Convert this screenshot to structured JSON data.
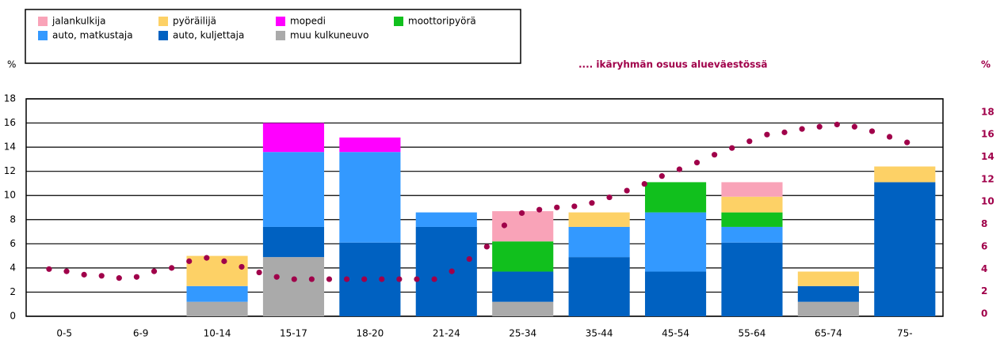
{
  "chart_data": {
    "type": "bar",
    "stacked": true,
    "categories": [
      "0-5",
      "6-9",
      "10-14",
      "15-17",
      "18-20",
      "21-24",
      "25-34",
      "35-44",
      "45-54",
      "55-64",
      "65-74",
      "75-"
    ],
    "ylabel": "%",
    "y2label": "%",
    "ylim": [
      0,
      18
    ],
    "yticks": [
      0,
      2,
      4,
      6,
      8,
      10,
      12,
      14,
      16,
      18
    ],
    "y2lim": [
      0,
      19.4
    ],
    "y2ticks": [
      0,
      2,
      4,
      6,
      8,
      10,
      12,
      14,
      16,
      18
    ],
    "grid": true,
    "series": [
      {
        "name": "jalankulkija",
        "color": "#f9a3b8",
        "values": [
          0,
          0,
          0,
          0,
          0,
          0,
          2.5,
          0,
          0,
          1.2,
          0,
          0
        ]
      },
      {
        "name": "pyöräilijä",
        "color": "#fdd166",
        "values": [
          0,
          0,
          2.5,
          0,
          0,
          0,
          0,
          1.2,
          0,
          1.3,
          1.2,
          1.3
        ]
      },
      {
        "name": "mopedi",
        "color": "#ff00ff",
        "values": [
          0,
          0,
          0,
          2.4,
          1.2,
          0,
          0,
          0,
          0,
          0,
          0,
          0
        ]
      },
      {
        "name": "moottoripyörä",
        "color": "#11c01d",
        "values": [
          0,
          0,
          0,
          0,
          0,
          0,
          2.5,
          0,
          2.5,
          1.2,
          0,
          0
        ]
      },
      {
        "name": "auto, matkustaja",
        "color": "#3399ff",
        "values": [
          0,
          0,
          1.3,
          6.2,
          7.5,
          1.2,
          0,
          2.5,
          4.9,
          1.3,
          0,
          0
        ]
      },
      {
        "name": "auto, kuljettaja",
        "color": "#0061c1",
        "values": [
          0,
          0,
          0,
          2.5,
          6.1,
          7.4,
          2.5,
          4.9,
          3.7,
          6.1,
          1.3,
          11.1
        ]
      },
      {
        "name": "muu kulkuneuvo",
        "color": "#aaaaaa",
        "values": [
          0,
          0,
          1.2,
          4.9,
          0,
          0,
          1.2,
          0,
          0,
          0,
          1.2,
          0
        ]
      }
    ],
    "population_share": {
      "name": ".... ikäryhmän osuus alueväestössä",
      "color": "#a0004a",
      "axis": "y2",
      "values": [
        4.0,
        3.8,
        3.5,
        3.4,
        3.2,
        3.3,
        3.8,
        4.1,
        4.7,
        5.0,
        4.7,
        4.2,
        3.7,
        3.3,
        3.1,
        3.1,
        3.1,
        3.1,
        3.1,
        3.1,
        3.1,
        3.1,
        3.1,
        3.8,
        4.9,
        6.0,
        7.9,
        9.0,
        9.3,
        9.5,
        9.6,
        9.9,
        10.4,
        11.0,
        11.6,
        12.3,
        12.9,
        13.5,
        14.2,
        14.8,
        15.4,
        16.0,
        16.2,
        16.5,
        16.7,
        16.9,
        16.7,
        16.3,
        15.8,
        15.3
      ]
    }
  }
}
